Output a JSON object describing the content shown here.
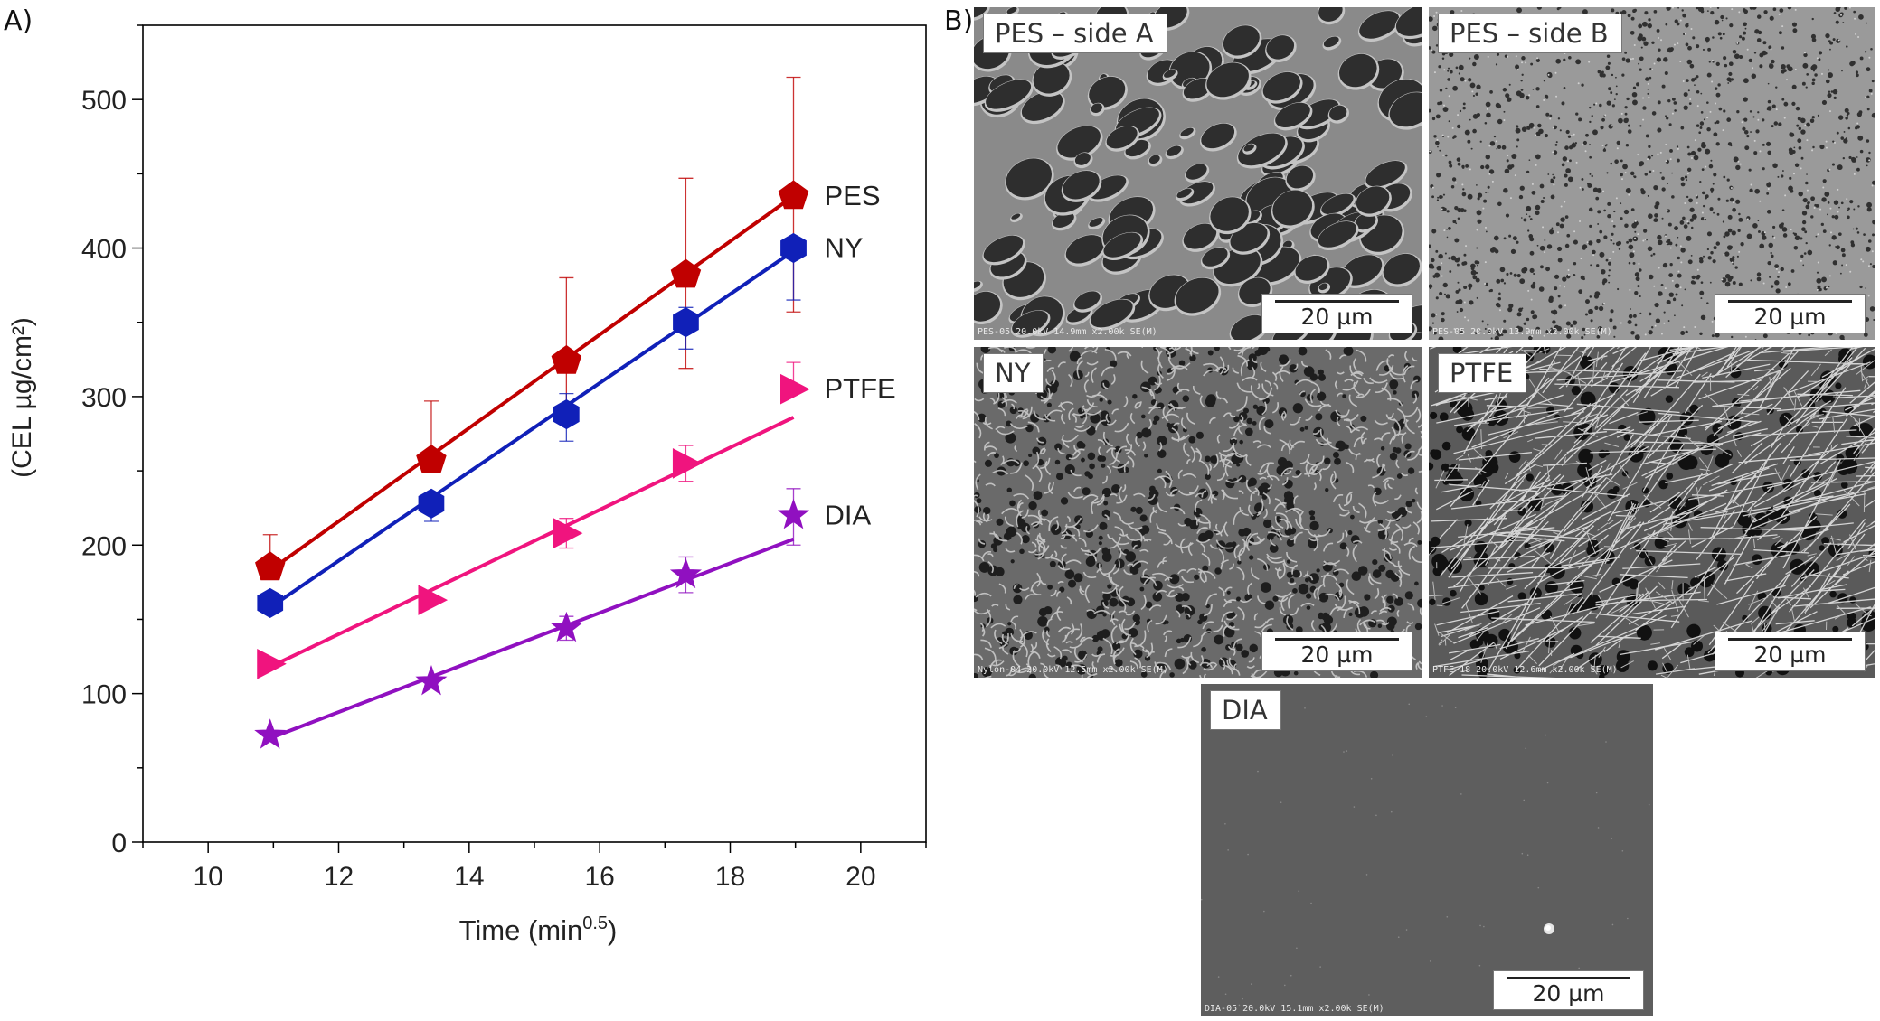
{
  "panel_a_label": "A)",
  "panel_b_label": "B)",
  "chart_data": {
    "type": "scatter",
    "title": "",
    "xlabel": "Time (min",
    "xlabel_sup": "0.5",
    "xlabel_close": ")",
    "ylabel": "(CEL µg/cm²)",
    "xlim": [
      9,
      21
    ],
    "ylim": [
      0,
      550
    ],
    "xticks": [
      "10",
      "12",
      "14",
      "16",
      "18",
      "20"
    ],
    "yticks": [
      "0",
      "100",
      "200",
      "300",
      "400",
      "500"
    ],
    "x": [
      10.95,
      13.42,
      15.49,
      17.32,
      18.97
    ],
    "series": [
      {
        "name": "PES",
        "marker": "pentagon",
        "color": "#c00000",
        "values": [
          185,
          257,
          324,
          382,
          435
        ],
        "err_up": [
          22,
          40,
          56,
          65,
          80
        ],
        "err_down": [
          0,
          0,
          40,
          63,
          78
        ],
        "fit": [
          10.95,
          183,
          18.97,
          435
        ]
      },
      {
        "name": "NY",
        "marker": "hexagon",
        "color": "#1020b8",
        "values": [
          161,
          228,
          288,
          350,
          400
        ],
        "err_up": [
          0,
          0,
          14,
          10,
          0
        ],
        "err_down": [
          0,
          12,
          18,
          18,
          35
        ],
        "fit": [
          10.95,
          158,
          18.97,
          398
        ]
      },
      {
        "name": "PTFE",
        "marker": "triangle-right",
        "color": "#f0147e",
        "values": [
          120,
          163,
          208,
          255,
          305
        ],
        "err_up": [
          0,
          0,
          10,
          12,
          18
        ],
        "err_down": [
          0,
          0,
          10,
          12,
          0
        ],
        "fit": [
          10.95,
          118,
          18.97,
          286
        ]
      },
      {
        "name": "DIA",
        "marker": "star",
        "color": "#9010c0",
        "values": [
          72,
          108,
          144,
          180,
          220
        ],
        "err_up": [
          0,
          0,
          8,
          12,
          18
        ],
        "err_down": [
          0,
          0,
          8,
          12,
          20
        ],
        "fit": [
          10.95,
          70,
          18.97,
          204
        ]
      }
    ]
  },
  "sem_images": [
    {
      "label": "PES – side A",
      "scale": "20 µm",
      "info": "PES-05 20.0kV 14.9mm x2.00k SE(M)",
      "texture": "pes-a"
    },
    {
      "label": "PES – side B",
      "scale": "20 µm",
      "info": "PES-05 20.0kV 13.9mm x2.00k SE(M)",
      "texture": "pes-b"
    },
    {
      "label": "NY",
      "scale": "20 µm",
      "info": "Nylon-04 20.0kV 12.5mm x2.00k SE(M)",
      "texture": "ny"
    },
    {
      "label": "PTFE",
      "scale": "20 µm",
      "info": "PTFE-18 20.0kV 12.6mm x2.00k SE(M)",
      "texture": "ptfe"
    },
    {
      "label": "DIA",
      "scale": "20 µm",
      "info": "DIA-05 20.0kV 15.1mm x2.00k SE(M)",
      "texture": "dia"
    }
  ]
}
